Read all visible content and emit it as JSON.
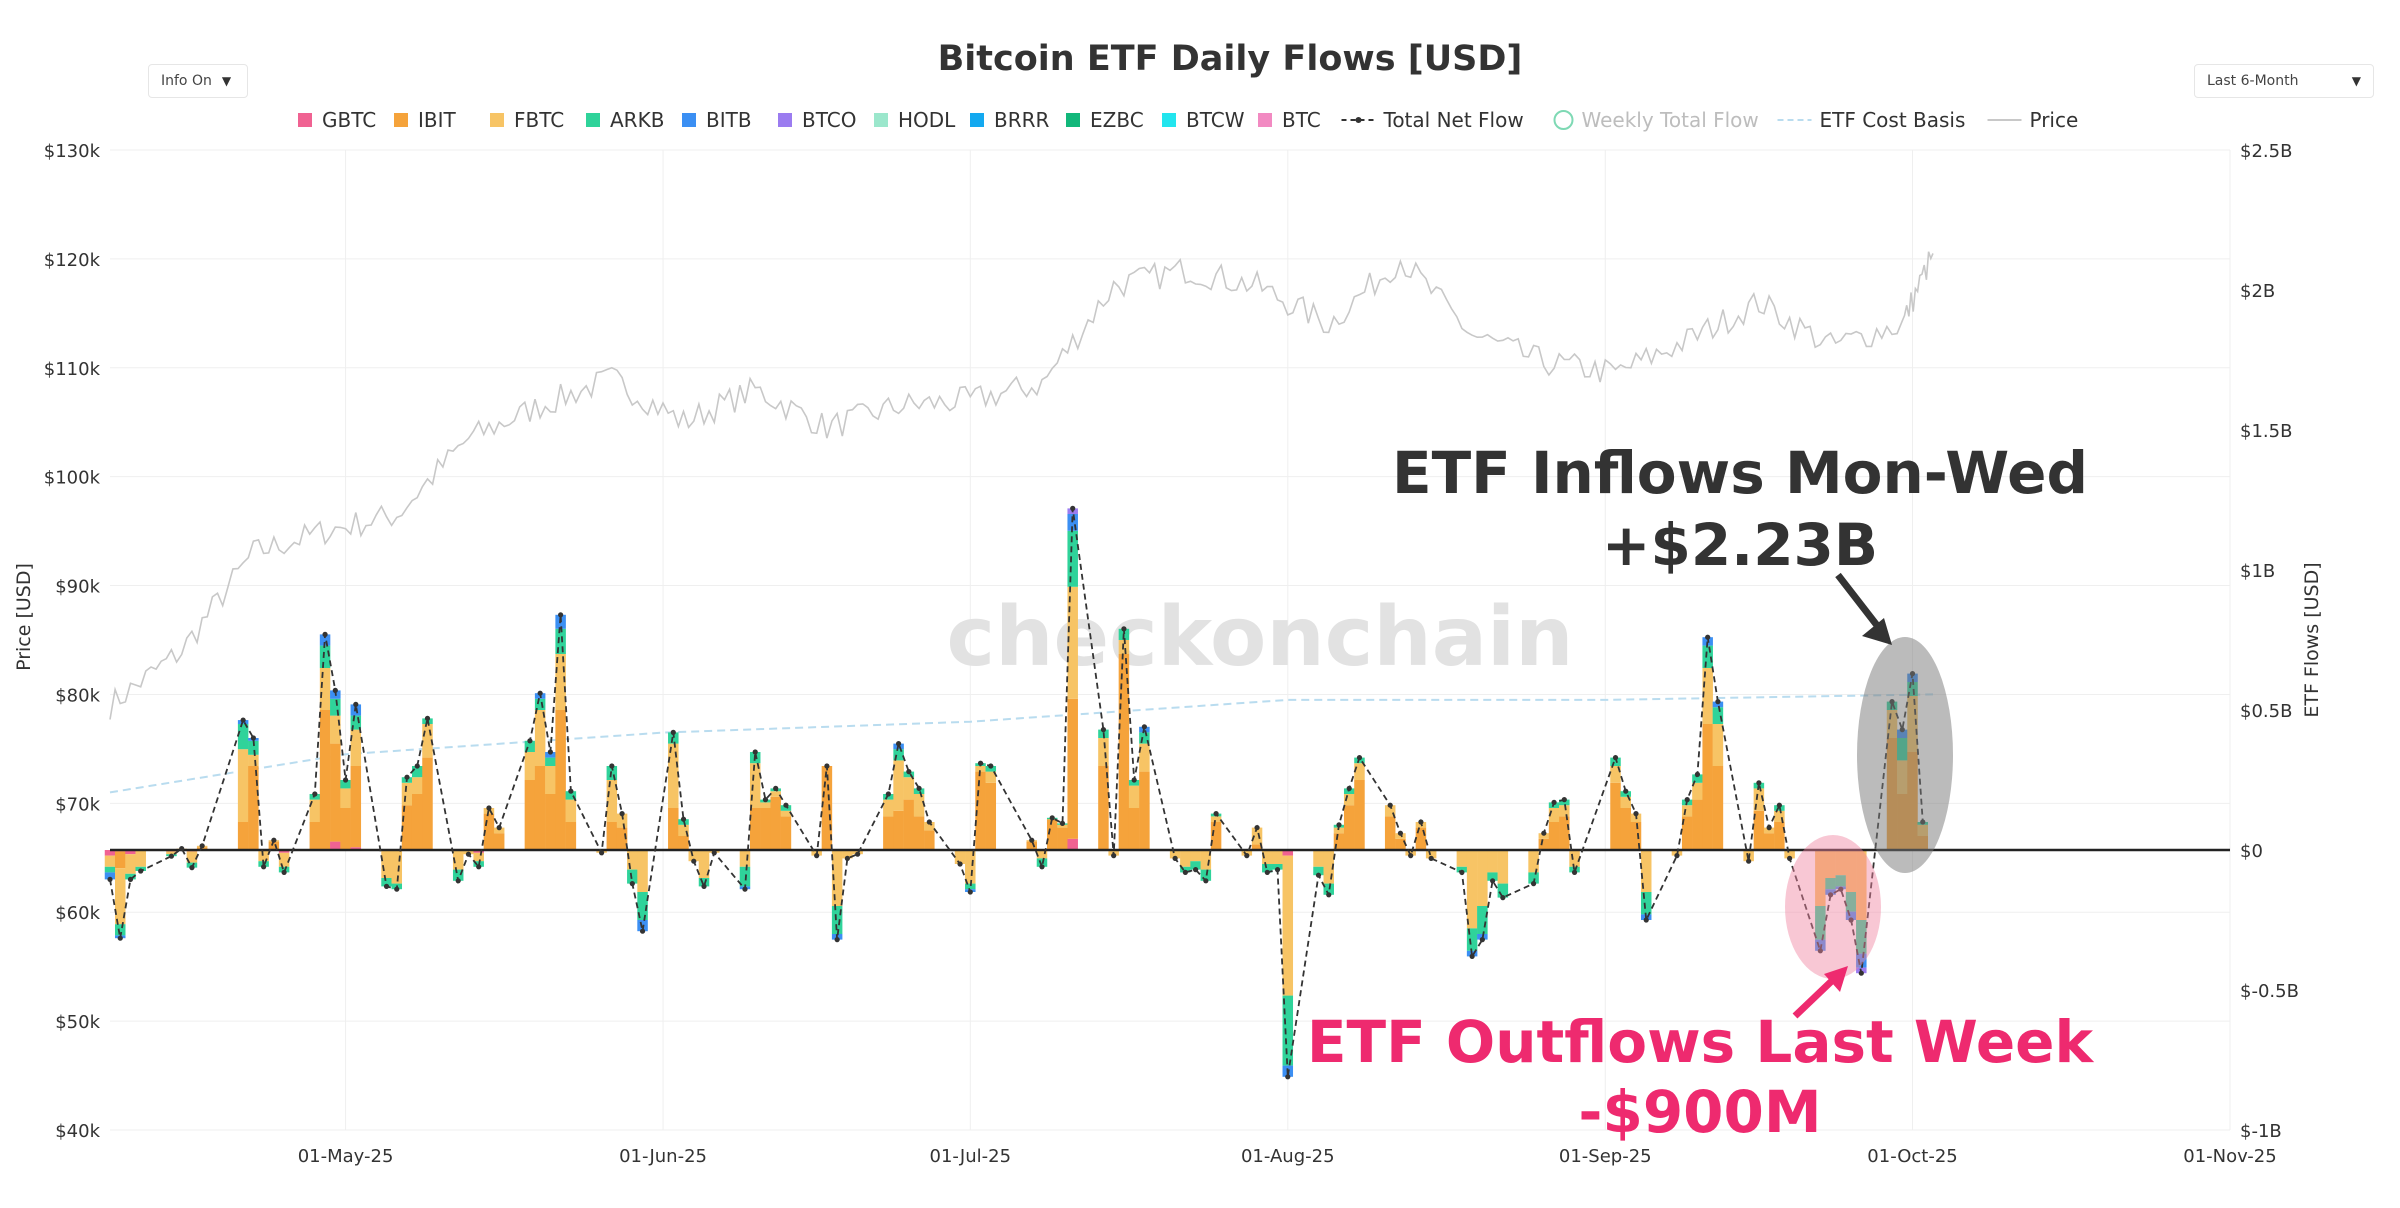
{
  "controls": {
    "info_toggle": "Info On",
    "range_select": "Last 6-Month"
  },
  "colors": {
    "GBTC": "#f06292",
    "IBIT": "#f5a33b",
    "FBTC": "#f7c465",
    "ARKB": "#2fd39a",
    "BITB": "#3b8ff3",
    "BTCO": "#9b7cf0",
    "HODL": "#9be7cc",
    "BRRR": "#13a9f0",
    "EZBC": "#12b77a",
    "BTCW": "#22e5ee",
    "BTC": "#f28ac2",
    "net": "#333333",
    "price": "#c8c8c8",
    "cost_basis": "#b9dcef",
    "annotation_in": "#333333",
    "annotation_out": "#ee2a6f"
  },
  "chart_data": {
    "type": "bar",
    "title": "Bitcoin ETF Daily Flows [USD]",
    "ylabel_left": "Price [USD]",
    "ylabel_right": "ETF Flows [USD]",
    "ylim_left": [
      40000,
      130000
    ],
    "ylim_right": [
      -1000000000,
      2500000000
    ],
    "yticks_left": [
      "$130k",
      "$120k",
      "$110k",
      "$100k",
      "$90k",
      "$80k",
      "$70k",
      "$60k",
      "$50k",
      "$40k"
    ],
    "yticks_right": [
      "$2.5B",
      "$2B",
      "$1.5B",
      "$1B",
      "$0.5B",
      "$0",
      "$-0.5B",
      "$-1B"
    ],
    "xticks": [
      "01-May-25",
      "01-Jun-25",
      "01-Jul-25",
      "01-Aug-25",
      "01-Sep-25",
      "01-Oct-25",
      "01-Nov-25"
    ],
    "xrange": [
      "2025-04-08",
      "2025-11-01"
    ],
    "legend": [
      "GBTC",
      "IBIT",
      "FBTC",
      "ARKB",
      "BITB",
      "BTCO",
      "HODL",
      "BRRR",
      "EZBC",
      "BTCW",
      "BTC",
      "Total Net Flow",
      "Weekly Total Flow",
      "ETF Cost Basis",
      "Price"
    ],
    "legend_position": "top",
    "watermark": "checkonchain",
    "units": "USD millions",
    "flows": [
      {
        "date": "2025-04-08",
        "GBTC": -20,
        "IBIT": 0,
        "FBTC": -40,
        "ARKB": -20,
        "BITB": -25
      },
      {
        "date": "2025-04-09",
        "GBTC": -5,
        "IBIT": -60,
        "FBTC": -200,
        "ARKB": -40,
        "BITB": -10
      },
      {
        "date": "2025-04-10",
        "GBTC": -15,
        "FBTC": -70,
        "ARKB": -20
      },
      {
        "date": "2025-04-11",
        "IBIT": 0,
        "FBTC": -60,
        "ARKB": -15
      },
      {
        "date": "2025-04-14",
        "GBTC": -5,
        "FBTC": -10,
        "ARKB": -7
      },
      {
        "date": "2025-04-15",
        "IBIT": 2,
        "FBTC": 3
      },
      {
        "date": "2025-04-16",
        "GBTC": -5,
        "FBTC": -40,
        "ARKB": -18
      },
      {
        "date": "2025-04-17",
        "IBIT": 10,
        "FBTC": 5
      },
      {
        "date": "2025-04-21",
        "IBIT": 100,
        "FBTC": 260,
        "ARKB": 90,
        "BITB": 14
      },
      {
        "date": "2025-04-22",
        "IBIT": 300,
        "FBTC": 40,
        "ARKB": 50,
        "BITB": 10
      },
      {
        "date": "2025-04-23",
        "IBIT": 0,
        "FBTC": -40,
        "ARKB": -20
      },
      {
        "date": "2025-04-24",
        "IBIT": 30,
        "FBTC": 5
      },
      {
        "date": "2025-04-25",
        "GBTC": -10,
        "FBTC": -50,
        "ARKB": -20
      },
      {
        "date": "2025-04-28",
        "IBIT": 100,
        "FBTC": 80,
        "ARKB": 20
      },
      {
        "date": "2025-04-29",
        "IBIT": 500,
        "FBTC": 150,
        "ARKB": 80,
        "BITB": 40
      },
      {
        "date": "2025-04-30",
        "GBTC": 30,
        "IBIT": 350,
        "FBTC": 100,
        "ARKB": 60,
        "BITB": 30
      },
      {
        "date": "2025-05-01",
        "IBIT": 150,
        "FBTC": 70,
        "ARKB": 30
      },
      {
        "date": "2025-05-02",
        "GBTC": 10,
        "IBIT": 290,
        "FBTC": 130,
        "ARKB": 50,
        "BITB": 40
      },
      {
        "date": "2025-05-05",
        "IBIT": 0,
        "FBTC": -100,
        "ARKB": -30
      },
      {
        "date": "2025-05-06",
        "IBIT": 0,
        "FBTC": -120,
        "ARKB": -20
      },
      {
        "date": "2025-05-07",
        "IBIT": 160,
        "FBTC": 80,
        "ARKB": 20
      },
      {
        "date": "2025-05-08",
        "IBIT": 200,
        "FBTC": 60,
        "ARKB": 40
      },
      {
        "date": "2025-05-09",
        "IBIT": 330,
        "FBTC": 120,
        "ARKB": 20
      },
      {
        "date": "2025-05-12",
        "IBIT": 0,
        "FBTC": -70,
        "ARKB": -40
      },
      {
        "date": "2025-05-13",
        "IBIT": 0,
        "FBTC": -15
      },
      {
        "date": "2025-05-14",
        "GBTC": -10,
        "IBIT": 0,
        "FBTC": -30,
        "ARKB": -20
      },
      {
        "date": "2025-05-15",
        "IBIT": 130,
        "FBTC": 20
      },
      {
        "date": "2025-05-16",
        "IBIT": 60,
        "FBTC": 20
      },
      {
        "date": "2025-05-19",
        "IBIT": 250,
        "FBTC": 100,
        "ARKB": 40
      },
      {
        "date": "2025-05-20",
        "IBIT": 300,
        "FBTC": 200,
        "ARKB": 40,
        "BITB": 20
      },
      {
        "date": "2025-05-21",
        "IBIT": 200,
        "FBTC": 100,
        "ARKB": 30,
        "BITB": 20
      },
      {
        "date": "2025-05-22",
        "IBIT": 500,
        "FBTC": 200,
        "ARKB": 90,
        "BITB": 50
      },
      {
        "date": "2025-05-23",
        "IBIT": 100,
        "FBTC": 80,
        "ARKB": 30
      },
      {
        "date": "2025-05-26",
        "IBIT": 0,
        "FBTC": -10
      },
      {
        "date": "2025-05-27",
        "IBIT": 100,
        "FBTC": 150,
        "ARKB": 50
      },
      {
        "date": "2025-05-28",
        "IBIT": 80,
        "FBTC": 50
      },
      {
        "date": "2025-05-29",
        "IBIT": 0,
        "FBTC": -70,
        "ARKB": -50
      },
      {
        "date": "2025-05-30",
        "IBIT": 0,
        "FBTC": -150,
        "ARKB": -100,
        "BITB": -40
      },
      {
        "date": "2025-06-02",
        "IBIT": 150,
        "FBTC": 230,
        "ARKB": 40
      },
      {
        "date": "2025-06-03",
        "IBIT": 50,
        "FBTC": 40,
        "ARKB": 20
      },
      {
        "date": "2025-06-04",
        "IBIT": 0,
        "FBTC": -40
      },
      {
        "date": "2025-06-05",
        "IBIT": 0,
        "FBTC": -100,
        "ARKB": -30
      },
      {
        "date": "2025-06-06",
        "IBIT": 0,
        "FBTC": -10
      },
      {
        "date": "2025-06-09",
        "IBIT": 0,
        "FBTC": -60,
        "ARKB": -70,
        "BITB": -10
      },
      {
        "date": "2025-06-10",
        "IBIT": 150,
        "FBTC": 160,
        "ARKB": 40
      },
      {
        "date": "2025-06-11",
        "IBIT": 150,
        "FBTC": 20,
        "ARKB": 10
      },
      {
        "date": "2025-06-12",
        "IBIT": 190,
        "FBTC": 20,
        "ARKB": 10
      },
      {
        "date": "2025-06-13",
        "IBIT": 120,
        "FBTC": 20,
        "ARKB": 20
      },
      {
        "date": "2025-06-16",
        "IBIT": 0,
        "FBTC": -20
      },
      {
        "date": "2025-06-17",
        "IBIT": 300,
        "FBTC": 0
      },
      {
        "date": "2025-06-18",
        "IBIT": 0,
        "FBTC": -200,
        "ARKB": -100,
        "BITB": -20
      },
      {
        "date": "2025-06-19",
        "IBIT": 0,
        "FBTC": -30
      },
      {
        "date": "2025-06-20",
        "IBIT": 0,
        "FBTC": -15
      },
      {
        "date": "2025-06-23",
        "IBIT": 120,
        "FBTC": 60,
        "ARKB": 20
      },
      {
        "date": "2025-06-24",
        "IBIT": 140,
        "FBTC": 180,
        "ARKB": 40,
        "BITB": 20
      },
      {
        "date": "2025-06-25",
        "IBIT": 180,
        "FBTC": 80,
        "ARKB": 20
      },
      {
        "date": "2025-06-26",
        "IBIT": 120,
        "FBTC": 80,
        "ARKB": 20
      },
      {
        "date": "2025-06-27",
        "IBIT": 70,
        "FBTC": 30
      },
      {
        "date": "2025-06-30",
        "IBIT": 0,
        "FBTC": -50
      },
      {
        "date": "2025-07-01",
        "IBIT": 0,
        "FBTC": -120,
        "ARKB": -20,
        "BITB": -10
      },
      {
        "date": "2025-07-02",
        "IBIT": 280,
        "FBTC": 20,
        "ARKB": 10
      },
      {
        "date": "2025-07-03",
        "IBIT": 240,
        "FBTC": 40,
        "ARKB": 20
      },
      {
        "date": "2025-07-07",
        "IBIT": 30,
        "FBTC": 5
      },
      {
        "date": "2025-07-08",
        "IBIT": 0,
        "FBTC": -30,
        "ARKB": -30
      },
      {
        "date": "2025-07-09",
        "IBIT": 110,
        "FBTC": 0,
        "ARKB": 5
      },
      {
        "date": "2025-07-10",
        "IBIT": 80,
        "FBTC": 10,
        "ARKB": 5
      },
      {
        "date": "2025-07-11",
        "IBIT": 500,
        "FBTC": 400,
        "ARKB": 200,
        "BITB": 60,
        "BTCO": 20,
        "GBTC": 40
      },
      {
        "date": "2025-07-14",
        "IBIT": 300,
        "FBTC": 100,
        "ARKB": 30
      },
      {
        "date": "2025-07-15",
        "IBIT": 0,
        "FBTC": -20
      },
      {
        "date": "2025-07-16",
        "IBIT": 700,
        "FBTC": 50,
        "ARKB": 40
      },
      {
        "date": "2025-07-17",
        "IBIT": 150,
        "FBTC": 80,
        "ARKB": 20
      },
      {
        "date": "2025-07-18",
        "IBIT": 280,
        "FBTC": 100,
        "ARKB": 40,
        "BITB": 20
      },
      {
        "date": "2025-07-21",
        "IBIT": 0,
        "FBTC": -30
      },
      {
        "date": "2025-07-22",
        "IBIT": 0,
        "FBTC": -60,
        "ARKB": -20
      },
      {
        "date": "2025-07-23",
        "IBIT": 0,
        "FBTC": -40,
        "ARKB": -30
      },
      {
        "date": "2025-07-24",
        "IBIT": 0,
        "FBTC": -70,
        "ARKB": -40
      },
      {
        "date": "2025-07-25",
        "IBIT": 100,
        "FBTC": 20,
        "ARKB": 10
      },
      {
        "date": "2025-07-28",
        "IBIT": 0,
        "FBTC": -20
      },
      {
        "date": "2025-07-29",
        "IBIT": 20,
        "FBTC": 60
      },
      {
        "date": "2025-07-30",
        "IBIT": 0,
        "FBTC": -50,
        "ARKB": -30
      },
      {
        "date": "2025-07-31",
        "IBIT": 0,
        "FBTC": -50,
        "ARKB": -20
      },
      {
        "date": "2025-08-01",
        "IBIT": 0,
        "FBTC": -500,
        "ARKB": -250,
        "BITB": -40,
        "GBTC": -20
      },
      {
        "date": "2025-08-04",
        "IBIT": 0,
        "FBTC": -60,
        "ARKB": -30
      },
      {
        "date": "2025-08-05",
        "IBIT": 0,
        "FBTC": -120,
        "ARKB": -40
      },
      {
        "date": "2025-08-06",
        "IBIT": 60,
        "FBTC": 20,
        "ARKB": 10
      },
      {
        "date": "2025-08-07",
        "IBIT": 160,
        "FBTC": 40,
        "ARKB": 20
      },
      {
        "date": "2025-08-08",
        "IBIT": 250,
        "FBTC": 60,
        "ARKB": 20
      },
      {
        "date": "2025-08-11",
        "IBIT": 120,
        "FBTC": 40
      },
      {
        "date": "2025-08-12",
        "IBIT": 40,
        "FBTC": 20
      },
      {
        "date": "2025-08-13",
        "IBIT": 0,
        "FBTC": -20
      },
      {
        "date": "2025-08-14",
        "IBIT": 80,
        "FBTC": 20
      },
      {
        "date": "2025-08-15",
        "IBIT": 0,
        "FBTC": -30
      },
      {
        "date": "2025-08-18",
        "IBIT": 0,
        "FBTC": -60,
        "ARKB": -20
      },
      {
        "date": "2025-08-19",
        "IBIT": 0,
        "FBTC": -280,
        "ARKB": -80,
        "BITB": -20
      },
      {
        "date": "2025-08-20",
        "IBIT": 0,
        "FBTC": -200,
        "ARKB": -100,
        "BITB": -20
      },
      {
        "date": "2025-08-21",
        "IBIT": 0,
        "FBTC": -80,
        "ARKB": -30
      },
      {
        "date": "2025-08-22",
        "IBIT": 0,
        "FBTC": -120,
        "ARKB": -50
      },
      {
        "date": "2025-08-25",
        "IBIT": 0,
        "FBTC": -80,
        "ARKB": -40
      },
      {
        "date": "2025-08-26",
        "IBIT": 40,
        "FBTC": 20
      },
      {
        "date": "2025-08-27",
        "IBIT": 100,
        "FBTC": 50,
        "ARKB": 20
      },
      {
        "date": "2025-08-28",
        "IBIT": 120,
        "FBTC": 40,
        "ARKB": 20
      },
      {
        "date": "2025-08-29",
        "IBIT": 0,
        "FBTC": -60,
        "ARKB": -20
      },
      {
        "date": "2025-09-02",
        "IBIT": 240,
        "FBTC": 60,
        "ARKB": 30
      },
      {
        "date": "2025-09-03",
        "IBIT": 150,
        "FBTC": 40,
        "ARKB": 20
      },
      {
        "date": "2025-09-04",
        "IBIT": 100,
        "FBTC": 30
      },
      {
        "date": "2025-09-05",
        "IBIT": 0,
        "FBTC": -150,
        "ARKB": -80,
        "BITB": -20
      },
      {
        "date": "2025-09-08",
        "IBIT": 0,
        "FBTC": -20
      },
      {
        "date": "2025-09-09",
        "IBIT": 120,
        "FBTC": 40,
        "ARKB": 20
      },
      {
        "date": "2025-09-10",
        "IBIT": 180,
        "FBTC": 60,
        "ARKB": 30
      },
      {
        "date": "2025-09-11",
        "IBIT": 450,
        "FBTC": 200,
        "ARKB": 80,
        "BITB": 30
      },
      {
        "date": "2025-09-12",
        "IBIT": 300,
        "FBTC": 150,
        "ARKB": 60,
        "BITB": 20
      },
      {
        "date": "2025-09-15",
        "IBIT": 0,
        "FBTC": -40
      },
      {
        "date": "2025-09-16",
        "IBIT": 140,
        "FBTC": 80,
        "ARKB": 20
      },
      {
        "date": "2025-09-17",
        "IBIT": 60,
        "FBTC": 20
      },
      {
        "date": "2025-09-18",
        "IBIT": 100,
        "FBTC": 40,
        "ARKB": 20
      },
      {
        "date": "2025-09-19",
        "IBIT": 0,
        "FBTC": -30
      },
      {
        "date": "2025-09-22",
        "IBIT": 0,
        "FBTC": -200,
        "ARKB": -120,
        "BITB": -40
      },
      {
        "date": "2025-09-23",
        "IBIT": 0,
        "FBTC": -100,
        "ARKB": -40,
        "BITB": -20
      },
      {
        "date": "2025-09-24",
        "IBIT": 0,
        "FBTC": -90,
        "ARKB": -40,
        "BITB": -10
      },
      {
        "date": "2025-09-25",
        "IBIT": 0,
        "FBTC": -150,
        "ARKB": -70,
        "BITB": -30
      },
      {
        "date": "2025-09-26",
        "IBIT": 0,
        "FBTC": -250,
        "ARKB": -120,
        "BITB": -50,
        "BTCO": -20
      },
      {
        "date": "2025-09-29",
        "IBIT": 400,
        "FBTC": 100,
        "ARKB": 30
      },
      {
        "date": "2025-09-30",
        "IBIT": 200,
        "FBTC": 120,
        "ARKB": 80,
        "BITB": 30
      },
      {
        "date": "2025-10-01",
        "IBIT": 350,
        "FBTC": 200,
        "ARKB": 50,
        "BITB": 30
      },
      {
        "date": "2025-10-02",
        "IBIT": 50,
        "FBTC": 40,
        "ARKB": 10
      }
    ],
    "price": {
      "dates": [
        "2025-04-08",
        "2025-04-15",
        "2025-04-22",
        "2025-04-29",
        "2025-05-06",
        "2025-05-13",
        "2025-05-20",
        "2025-05-27",
        "2025-06-03",
        "2025-06-10",
        "2025-06-17",
        "2025-06-24",
        "2025-07-01",
        "2025-07-08",
        "2025-07-15",
        "2025-07-22",
        "2025-07-29",
        "2025-08-05",
        "2025-08-12",
        "2025-08-19",
        "2025-08-26",
        "2025-09-02",
        "2025-09-09",
        "2025-09-16",
        "2025-09-23",
        "2025-09-30",
        "2025-10-03"
      ],
      "values": [
        79000,
        84000,
        93000,
        95000,
        96500,
        103500,
        106500,
        109000,
        105000,
        108000,
        104500,
        106500,
        107000,
        108500,
        117500,
        119000,
        117500,
        114000,
        120000,
        113000,
        110500,
        109500,
        112500,
        116000,
        112000,
        114000,
        120500
      ]
    },
    "cost_basis": {
      "dates": [
        "2025-04-08",
        "2025-05-01",
        "2025-06-01",
        "2025-07-01",
        "2025-08-01",
        "2025-09-01",
        "2025-10-03"
      ],
      "values": [
        71000,
        74500,
        76500,
        77500,
        79500,
        79500,
        80000
      ]
    }
  },
  "annotations": {
    "inflows_line1": "ETF Inflows Mon-Wed",
    "inflows_line2": "+$2.23B",
    "outflows_line1": "ETF Outflows Last Week",
    "outflows_line2": "-$900M"
  }
}
